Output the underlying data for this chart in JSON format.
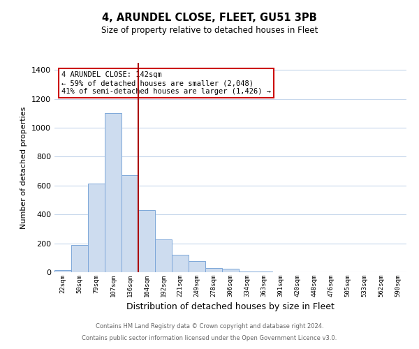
{
  "title": "4, ARUNDEL CLOSE, FLEET, GU51 3PB",
  "subtitle": "Size of property relative to detached houses in Fleet",
  "xlabel": "Distribution of detached houses by size in Fleet",
  "ylabel": "Number of detached properties",
  "bar_labels": [
    "22sqm",
    "50sqm",
    "79sqm",
    "107sqm",
    "136sqm",
    "164sqm",
    "192sqm",
    "221sqm",
    "249sqm",
    "278sqm",
    "306sqm",
    "334sqm",
    "363sqm",
    "391sqm",
    "420sqm",
    "448sqm",
    "476sqm",
    "505sqm",
    "533sqm",
    "562sqm",
    "590sqm"
  ],
  "bar_heights": [
    15,
    190,
    615,
    1100,
    670,
    430,
    225,
    120,
    75,
    30,
    25,
    5,
    5,
    0,
    0,
    0,
    0,
    0,
    0,
    0,
    0
  ],
  "bar_color": "#cddcef",
  "bar_edge_color": "#7da7d9",
  "vline_color": "#aa0000",
  "ylim": [
    0,
    1450
  ],
  "yticks": [
    0,
    200,
    400,
    600,
    800,
    1000,
    1200,
    1400
  ],
  "annotation_text": "4 ARUNDEL CLOSE: 142sqm\n← 59% of detached houses are smaller (2,048)\n41% of semi-detached houses are larger (1,426) →",
  "annotation_box_color": "#ffffff",
  "annotation_box_edge": "#cc0000",
  "footer_line1": "Contains HM Land Registry data © Crown copyright and database right 2024.",
  "footer_line2": "Contains public sector information licensed under the Open Government Licence v3.0.",
  "background_color": "#ffffff",
  "grid_color": "#c8d8ec"
}
